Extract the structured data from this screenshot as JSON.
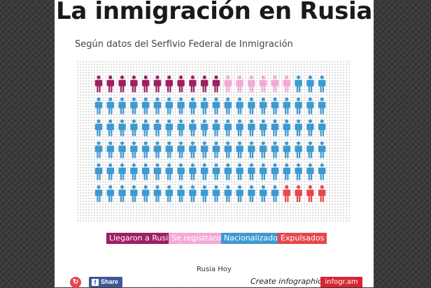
{
  "chart_data": {
    "type": "pictograph",
    "title": "La inmigración en Rusia",
    "subtitle": "Según datos del Serfivio Federal de Inmigración",
    "rows": 6,
    "columns": 20,
    "total_icons": 120,
    "series": [
      {
        "name": "Llegaron a Rusia",
        "count": 11,
        "color": "#9e1f63"
      },
      {
        "name": "Se registraron",
        "count": 6,
        "color": "#f3a9d6"
      },
      {
        "name": "Nacionalizados",
        "count": 99,
        "color": "#3d9ad1"
      },
      {
        "name": "Expulsados",
        "count": 4,
        "color": "#e8474c"
      }
    ],
    "icon_sequence": [
      {
        "series": 0,
        "count": 11
      },
      {
        "series": 1,
        "count": 6
      },
      {
        "series": 2,
        "count": 99
      },
      {
        "series": 3,
        "count": 4
      }
    ],
    "legend_position": "bottom",
    "source": "Rusia Hoy"
  },
  "footer": {
    "logo_icon": "infogram-logo-icon",
    "share_label": "Share",
    "share_icon": "facebook-icon",
    "create_label": "Create infographics",
    "infogram_label": "infogr.am"
  }
}
